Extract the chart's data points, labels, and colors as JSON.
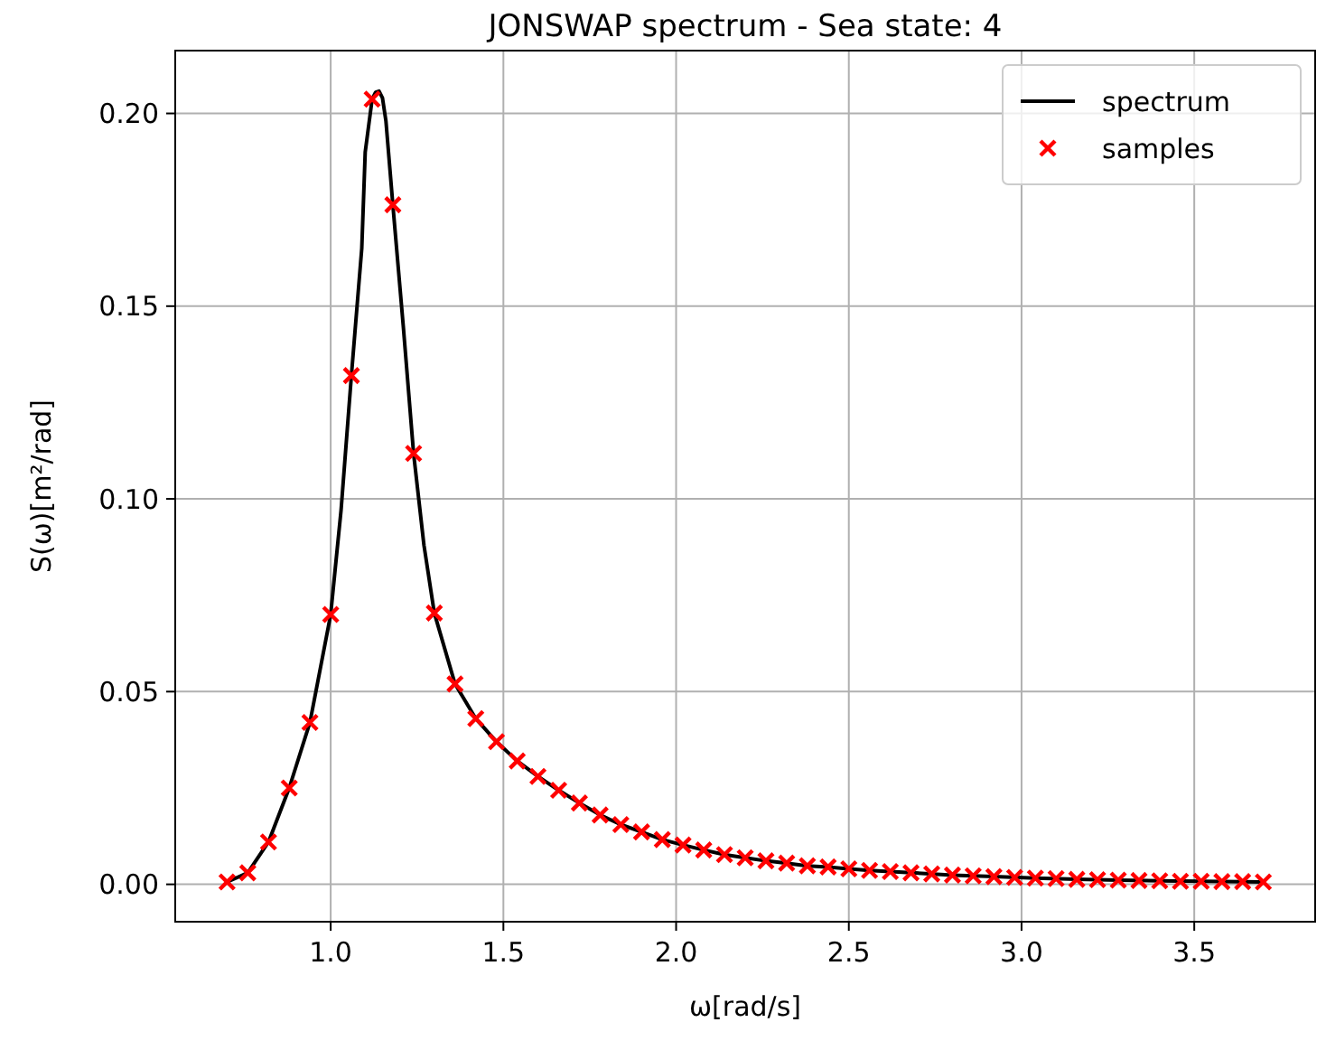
{
  "chart_data": {
    "type": "line",
    "title": "JONSWAP spectrum - Sea state: 4",
    "xlabel": "ω[rad/s]",
    "ylabel": "S(ω)[m²/rad]",
    "xlim": [
      0.55,
      3.85
    ],
    "ylim": [
      -0.0097,
      0.2163
    ],
    "xticks": [
      {
        "value": 1,
        "label": "1.0"
      },
      {
        "value": 1.5,
        "label": "1.5"
      },
      {
        "value": 2,
        "label": "2.0"
      },
      {
        "value": 2.5,
        "label": "2.5"
      },
      {
        "value": 3,
        "label": "3.0"
      },
      {
        "value": 3.5,
        "label": "3.5"
      }
    ],
    "yticks": [
      {
        "value": 0,
        "label": "0.00"
      },
      {
        "value": 0.05,
        "label": "0.05"
      },
      {
        "value": 0.1,
        "label": "0.10"
      },
      {
        "value": 0.15,
        "label": "0.15"
      },
      {
        "value": 0.2,
        "label": "0.20"
      }
    ],
    "grid": true,
    "legend": "top right",
    "series": [
      {
        "name": "spectrum",
        "color": "#000000",
        "marker": "none",
        "line_style": "solid",
        "x": [
          0.7,
          0.76,
          0.82,
          0.88,
          0.94,
          1.0,
          1.03,
          1.06,
          1.09,
          1.1,
          1.12,
          1.13,
          1.14,
          1.15,
          1.16,
          1.18,
          1.21,
          1.24,
          1.27,
          1.3,
          1.36,
          1.42,
          1.48,
          1.54,
          1.6,
          1.66,
          1.72,
          1.78,
          1.84,
          1.9,
          1.96,
          2.02,
          2.08,
          2.14,
          2.2,
          2.26,
          2.32,
          2.38,
          2.44,
          2.5,
          2.56,
          2.62,
          2.68,
          2.8,
          2.92,
          3.04,
          3.16,
          3.28,
          3.4,
          3.52,
          3.7
        ],
        "values": [
          0.0006,
          0.003,
          0.011,
          0.025,
          0.042,
          0.07,
          0.097,
          0.132,
          0.165,
          0.19,
          0.2037,
          0.2055,
          0.2058,
          0.204,
          0.198,
          0.1763,
          0.145,
          0.1118,
          0.088,
          0.0704,
          0.052,
          0.043,
          0.037,
          0.032,
          0.028,
          0.0244,
          0.0211,
          0.018,
          0.0155,
          0.0136,
          0.0116,
          0.0102,
          0.0089,
          0.0077,
          0.0069,
          0.0061,
          0.0055,
          0.0048,
          0.0045,
          0.004,
          0.0036,
          0.0033,
          0.003,
          0.0024,
          0.002,
          0.0016,
          0.0013,
          0.0011,
          0.0009,
          0.0008,
          0.0006
        ]
      },
      {
        "name": "samples",
        "type": "scatter",
        "color": "#ff0000",
        "marker": "cross",
        "x": [
          0.7,
          0.76,
          0.82,
          0.88,
          0.94,
          1.0,
          1.06,
          1.12,
          1.18,
          1.24,
          1.3,
          1.36,
          1.42,
          1.48,
          1.54,
          1.6,
          1.66,
          1.72,
          1.78,
          1.84,
          1.9,
          1.96,
          2.02,
          2.08,
          2.14,
          2.2,
          2.26,
          2.32,
          2.38,
          2.44,
          2.5,
          2.56,
          2.62,
          2.68,
          2.74,
          2.8,
          2.86,
          2.92,
          2.98,
          3.04,
          3.1,
          3.16,
          3.22,
          3.28,
          3.34,
          3.4,
          3.46,
          3.52,
          3.58,
          3.64,
          3.7
        ],
        "values": [
          0.0006,
          0.003,
          0.011,
          0.025,
          0.042,
          0.07,
          0.132,
          0.2037,
          0.1763,
          0.1118,
          0.0704,
          0.052,
          0.043,
          0.037,
          0.032,
          0.028,
          0.0244,
          0.0211,
          0.018,
          0.0155,
          0.0136,
          0.0116,
          0.0102,
          0.0089,
          0.0077,
          0.0069,
          0.0061,
          0.0055,
          0.0048,
          0.0045,
          0.004,
          0.0036,
          0.0033,
          0.003,
          0.0027,
          0.0024,
          0.0022,
          0.002,
          0.0018,
          0.0016,
          0.0015,
          0.0013,
          0.0012,
          0.0011,
          0.001,
          0.0009,
          0.0008,
          0.0008,
          0.0007,
          0.0007,
          0.0006
        ]
      }
    ]
  }
}
